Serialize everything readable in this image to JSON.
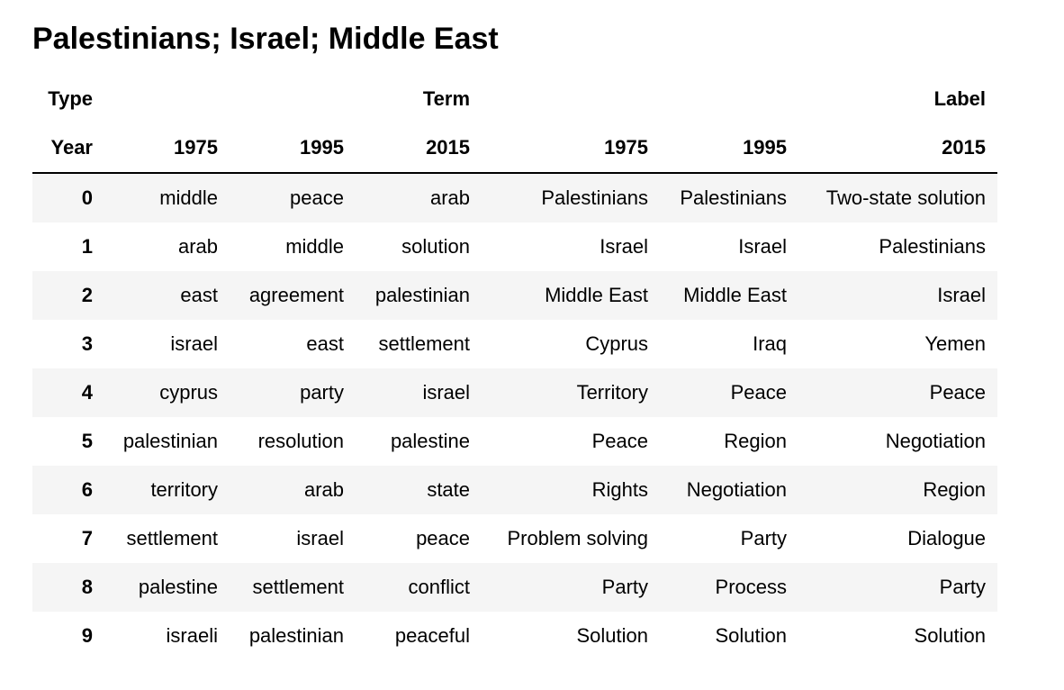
{
  "title": "Palestinians; Israel; Middle East",
  "table": {
    "header_type": {
      "label": "Type",
      "term": "Term",
      "label_group": "Label"
    },
    "header_year": {
      "label": "Year",
      "columns": [
        "1975",
        "1995",
        "2015",
        "1975",
        "1995",
        "2015"
      ]
    },
    "rows": [
      {
        "index": "0",
        "cells": [
          "middle",
          "peace",
          "arab",
          "Palestinians",
          "Palestinians",
          "Two-state solution"
        ]
      },
      {
        "index": "1",
        "cells": [
          "arab",
          "middle",
          "solution",
          "Israel",
          "Israel",
          "Palestinians"
        ]
      },
      {
        "index": "2",
        "cells": [
          "east",
          "agreement",
          "palestinian",
          "Middle East",
          "Middle East",
          "Israel"
        ]
      },
      {
        "index": "3",
        "cells": [
          "israel",
          "east",
          "settlement",
          "Cyprus",
          "Iraq",
          "Yemen"
        ]
      },
      {
        "index": "4",
        "cells": [
          "cyprus",
          "party",
          "israel",
          "Territory",
          "Peace",
          "Peace"
        ]
      },
      {
        "index": "5",
        "cells": [
          "palestinian",
          "resolution",
          "palestine",
          "Peace",
          "Region",
          "Negotiation"
        ]
      },
      {
        "index": "6",
        "cells": [
          "territory",
          "arab",
          "state",
          "Rights",
          "Negotiation",
          "Region"
        ]
      },
      {
        "index": "7",
        "cells": [
          "settlement",
          "israel",
          "peace",
          "Problem solving",
          "Party",
          "Dialogue"
        ]
      },
      {
        "index": "8",
        "cells": [
          "palestine",
          "settlement",
          "conflict",
          "Party",
          "Process",
          "Party"
        ]
      },
      {
        "index": "9",
        "cells": [
          "israeli",
          "palestinian",
          "peaceful",
          "Solution",
          "Solution",
          "Solution"
        ]
      }
    ]
  }
}
